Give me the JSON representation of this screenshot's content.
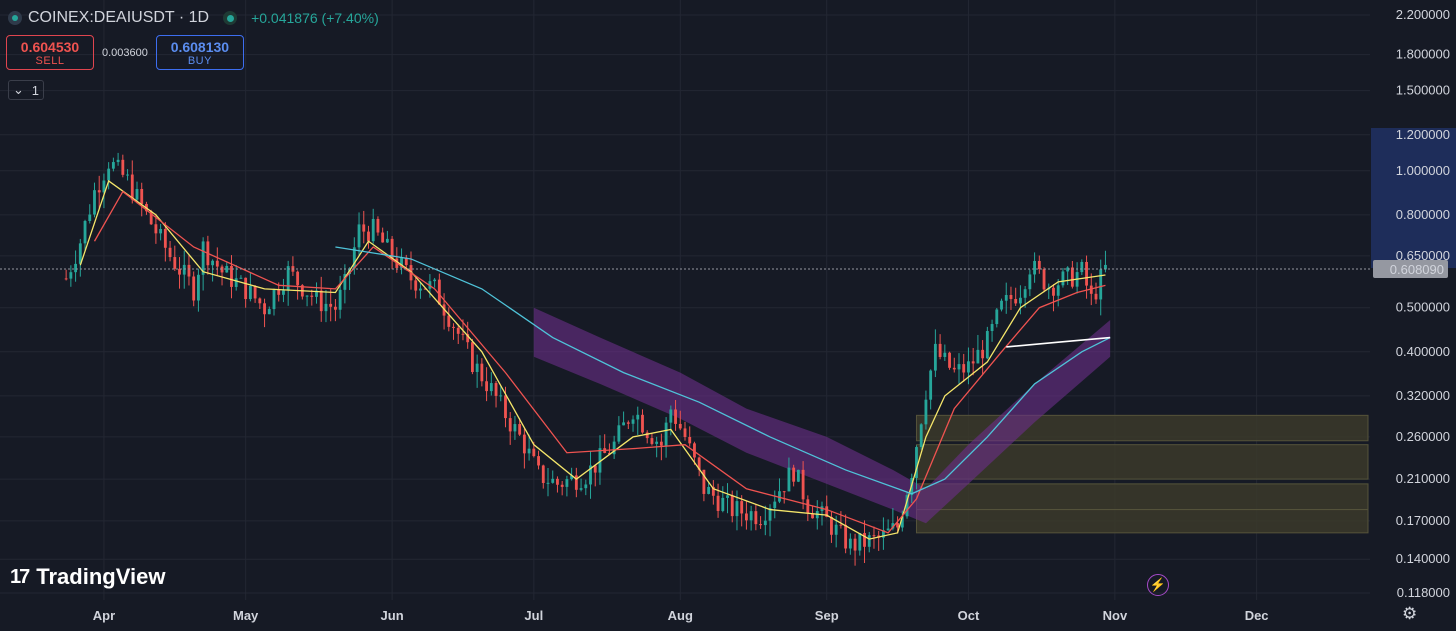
{
  "header": {
    "symbol": "COINEX:DEAIUSDT · 1D",
    "change": "+0.041876 (+7.40%)"
  },
  "trade": {
    "sell_price": "0.604530",
    "sell_label": "SELL",
    "spread": "0.003600",
    "buy_price": "0.608130",
    "buy_label": "BUY"
  },
  "collapse": {
    "count": "1"
  },
  "brand": {
    "name": "TradingView"
  },
  "colors": {
    "background": "#161a25",
    "up": "#26a69a",
    "down": "#ef5350",
    "ma_fast": "#f5e66a",
    "ma_mid": "#ef5350",
    "ma_slow": "#4fc3d9",
    "band": "#6d2f8a",
    "zones": "#3b3a2a"
  },
  "icons": [
    "logo-icon",
    "live-status-icon",
    "chevron-down-icon",
    "bolt-icon",
    "gear-icon"
  ],
  "chart_data": {
    "type": "candlestick",
    "yscale": "log",
    "ylim": [
      0.118,
      2.2
    ],
    "xlim": [
      "2024-03-10",
      "2024-12-25"
    ],
    "y_ticks": [
      "2.200000",
      "1.800000",
      "1.500000",
      "1.200000",
      "1.000000",
      "0.800000",
      "0.650000",
      "0.500000",
      "0.400000",
      "0.320000",
      "0.260000",
      "0.210000",
      "0.170000",
      "0.140000",
      "0.118000"
    ],
    "y_tick_values": [
      2.2,
      1.8,
      1.5,
      1.2,
      1.0,
      0.8,
      0.65,
      0.5,
      0.4,
      0.32,
      0.26,
      0.21,
      0.17,
      0.14,
      0.118
    ],
    "x_ticks": [
      "Apr",
      "May",
      "Jun",
      "Jul",
      "Aug",
      "Sep",
      "Oct",
      "Nov",
      "Dec"
    ],
    "x_tick_dates": [
      "2024-04-01",
      "2024-05-01",
      "2024-06-01",
      "2024-07-01",
      "2024-08-01",
      "2024-09-01",
      "2024-10-01",
      "2024-11-01",
      "2024-12-01"
    ],
    "last_price": "0.608090",
    "last_price_value": 0.60809,
    "price_anchors": [
      [
        "2024-03-24",
        0.58
      ],
      [
        "2024-03-27",
        0.7
      ],
      [
        "2024-03-30",
        0.9
      ],
      [
        "2024-04-02",
        1.05
      ],
      [
        "2024-04-06",
        0.95
      ],
      [
        "2024-04-10",
        0.8
      ],
      [
        "2024-04-15",
        0.65
      ],
      [
        "2024-04-20",
        0.55
      ],
      [
        "2024-04-22",
        0.68
      ],
      [
        "2024-04-26",
        0.6
      ],
      [
        "2024-05-01",
        0.55
      ],
      [
        "2024-05-05",
        0.5
      ],
      [
        "2024-05-08",
        0.56
      ],
      [
        "2024-05-10",
        0.6
      ],
      [
        "2024-05-12",
        0.57
      ],
      [
        "2024-05-16",
        0.52
      ],
      [
        "2024-05-20",
        0.5
      ],
      [
        "2024-05-22",
        0.56
      ],
      [
        "2024-05-25",
        0.74
      ],
      [
        "2024-05-28",
        0.74
      ],
      [
        "2024-06-01",
        0.65
      ],
      [
        "2024-06-05",
        0.58
      ],
      [
        "2024-06-10",
        0.55
      ],
      [
        "2024-06-14",
        0.46
      ],
      [
        "2024-06-18",
        0.38
      ],
      [
        "2024-06-22",
        0.33
      ],
      [
        "2024-06-26",
        0.28
      ],
      [
        "2024-06-29",
        0.25
      ],
      [
        "2024-07-02",
        0.215
      ],
      [
        "2024-07-06",
        0.205
      ],
      [
        "2024-07-12",
        0.215
      ],
      [
        "2024-07-18",
        0.25
      ],
      [
        "2024-07-22",
        0.3
      ],
      [
        "2024-07-25",
        0.27
      ],
      [
        "2024-07-28",
        0.25
      ],
      [
        "2024-07-30",
        0.3
      ],
      [
        "2024-08-02",
        0.26
      ],
      [
        "2024-08-06",
        0.2
      ],
      [
        "2024-08-12",
        0.18
      ],
      [
        "2024-08-18",
        0.175
      ],
      [
        "2024-08-22",
        0.2
      ],
      [
        "2024-08-25",
        0.22
      ],
      [
        "2024-08-28",
        0.185
      ],
      [
        "2024-09-01",
        0.17
      ],
      [
        "2024-09-06",
        0.15
      ],
      [
        "2024-09-12",
        0.155
      ],
      [
        "2024-09-16",
        0.165
      ],
      [
        "2024-09-19",
        0.22
      ],
      [
        "2024-09-22",
        0.33
      ],
      [
        "2024-09-24",
        0.4
      ],
      [
        "2024-09-28",
        0.36
      ],
      [
        "2024-10-01",
        0.37
      ],
      [
        "2024-10-05",
        0.42
      ],
      [
        "2024-10-08",
        0.5
      ],
      [
        "2024-10-12",
        0.55
      ],
      [
        "2024-10-14",
        0.62
      ],
      [
        "2024-10-18",
        0.56
      ],
      [
        "2024-10-22",
        0.58
      ],
      [
        "2024-10-25",
        0.6
      ],
      [
        "2024-10-27",
        0.52
      ],
      [
        "2024-10-30",
        0.608
      ]
    ],
    "series": [
      {
        "kind": "ma",
        "anchors": [
          [
            "2024-03-27",
            0.62
          ],
          [
            "2024-04-02",
            0.95
          ],
          [
            "2024-04-12",
            0.8
          ],
          [
            "2024-04-22",
            0.6
          ],
          [
            "2024-05-05",
            0.55
          ],
          [
            "2024-05-20",
            0.54
          ],
          [
            "2024-05-27",
            0.7
          ],
          [
            "2024-06-05",
            0.6
          ],
          [
            "2024-06-20",
            0.4
          ],
          [
            "2024-07-01",
            0.25
          ],
          [
            "2024-07-10",
            0.21
          ],
          [
            "2024-07-22",
            0.26
          ],
          [
            "2024-07-30",
            0.27
          ],
          [
            "2024-08-08",
            0.2
          ],
          [
            "2024-08-20",
            0.18
          ],
          [
            "2024-09-01",
            0.175
          ],
          [
            "2024-09-10",
            0.155
          ],
          [
            "2024-09-16",
            0.16
          ],
          [
            "2024-09-22",
            0.26
          ],
          [
            "2024-09-26",
            0.32
          ],
          [
            "2024-10-05",
            0.38
          ],
          [
            "2024-10-12",
            0.5
          ],
          [
            "2024-10-20",
            0.57
          ],
          [
            "2024-10-30",
            0.59
          ]
        ]
      },
      {
        "kind": "ma",
        "anchors": [
          [
            "2024-03-30",
            0.7
          ],
          [
            "2024-04-05",
            0.9
          ],
          [
            "2024-04-20",
            0.68
          ],
          [
            "2024-05-08",
            0.56
          ],
          [
            "2024-05-20",
            0.55
          ],
          [
            "2024-05-28",
            0.68
          ],
          [
            "2024-06-10",
            0.55
          ],
          [
            "2024-06-25",
            0.36
          ],
          [
            "2024-07-08",
            0.24
          ],
          [
            "2024-07-22",
            0.245
          ],
          [
            "2024-08-02",
            0.25
          ],
          [
            "2024-08-15",
            0.2
          ],
          [
            "2024-09-01",
            0.18
          ],
          [
            "2024-09-14",
            0.16
          ],
          [
            "2024-09-20",
            0.19
          ],
          [
            "2024-09-28",
            0.3
          ],
          [
            "2024-10-08",
            0.4
          ],
          [
            "2024-10-16",
            0.5
          ],
          [
            "2024-10-24",
            0.54
          ],
          [
            "2024-10-30",
            0.56
          ]
        ]
      },
      {
        "kind": "ma",
        "anchors": [
          [
            "2024-05-20",
            0.68
          ],
          [
            "2024-06-05",
            0.64
          ],
          [
            "2024-06-20",
            0.55
          ],
          [
            "2024-07-05",
            0.43
          ],
          [
            "2024-07-20",
            0.36
          ],
          [
            "2024-08-05",
            0.31
          ],
          [
            "2024-08-20",
            0.26
          ],
          [
            "2024-09-05",
            0.22
          ],
          [
            "2024-09-19",
            0.195
          ],
          [
            "2024-09-26",
            0.21
          ],
          [
            "2024-10-05",
            0.26
          ],
          [
            "2024-10-15",
            0.34
          ],
          [
            "2024-10-25",
            0.4
          ],
          [
            "2024-10-31",
            0.43
          ]
        ]
      },
      {
        "kind": "ma",
        "anchors": [
          [
            "2024-10-09",
            0.41
          ],
          [
            "2024-10-20",
            0.42
          ],
          [
            "2024-10-31",
            0.43
          ]
        ]
      }
    ],
    "band": {
      "upper": [
        [
          "2024-07-01",
          0.5
        ],
        [
          "2024-07-15",
          0.43
        ],
        [
          "2024-08-01",
          0.36
        ],
        [
          "2024-08-15",
          0.3
        ],
        [
          "2024-09-01",
          0.26
        ],
        [
          "2024-09-15",
          0.22
        ],
        [
          "2024-09-22",
          0.2
        ],
        [
          "2024-10-01",
          0.25
        ],
        [
          "2024-10-15",
          0.34
        ],
        [
          "2024-10-31",
          0.47
        ]
      ],
      "lower": [
        [
          "2024-07-01",
          0.39
        ],
        [
          "2024-07-15",
          0.34
        ],
        [
          "2024-08-01",
          0.285
        ],
        [
          "2024-08-15",
          0.24
        ],
        [
          "2024-09-01",
          0.205
        ],
        [
          "2024-09-15",
          0.18
        ],
        [
          "2024-09-22",
          0.168
        ],
        [
          "2024-10-01",
          0.205
        ],
        [
          "2024-10-15",
          0.28
        ],
        [
          "2024-10-31",
          0.39
        ]
      ]
    },
    "zones": [
      {
        "start": "2024-09-20",
        "end": "2024-12-25",
        "top": 0.29,
        "bottom": 0.255
      },
      {
        "start": "2024-09-20",
        "end": "2024-12-25",
        "top": 0.25,
        "bottom": 0.21
      },
      {
        "start": "2024-09-20",
        "end": "2024-12-25",
        "top": 0.205,
        "bottom": 0.18
      },
      {
        "start": "2024-09-20",
        "end": "2024-12-25",
        "top": 0.18,
        "bottom": 0.16
      }
    ]
  }
}
